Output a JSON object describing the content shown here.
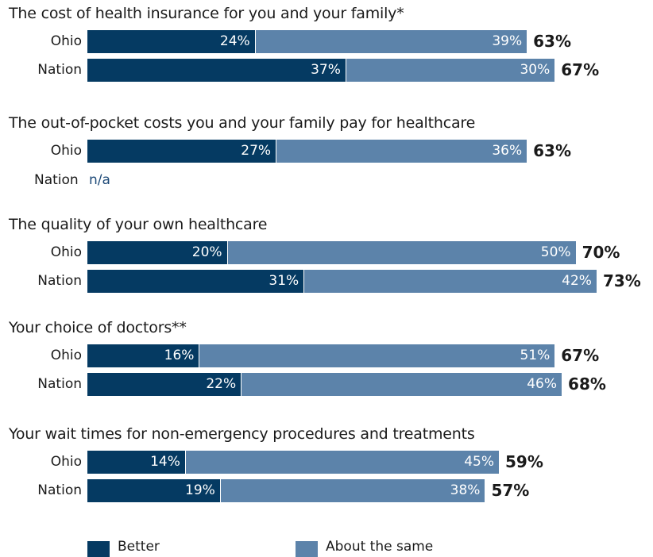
{
  "chart_data": {
    "type": "bar",
    "orientation": "horizontal",
    "stacked": true,
    "xlim": [
      0,
      100
    ],
    "grid": false,
    "legend_position": "bottom",
    "legend": [
      {
        "name": "Better",
        "color": "#053a62"
      },
      {
        "name": "About the same",
        "color": "#5c83aa"
      }
    ],
    "groups": [
      {
        "title": "The cost of health insurance for you and your family*",
        "rows": [
          {
            "label": "Ohio",
            "better": 24,
            "same": 39,
            "better_label": "24%",
            "same_label": "39%",
            "total_label": "63%"
          },
          {
            "label": "Nation",
            "better": 37,
            "same": 30,
            "better_label": "37%",
            "same_label": "30%",
            "total_label": "67%"
          }
        ]
      },
      {
        "title": "The out-of-pocket costs you and your family pay for healthcare",
        "rows": [
          {
            "label": "Ohio",
            "better": 27,
            "same": 36,
            "better_label": "27%",
            "same_label": "36%",
            "total_label": "63%"
          },
          {
            "label": "Nation",
            "na_text": "n/a"
          }
        ]
      },
      {
        "title": "The quality of your own healthcare",
        "rows": [
          {
            "label": "Ohio",
            "better": 20,
            "same": 50,
            "better_label": "20%",
            "same_label": "50%",
            "total_label": "70%"
          },
          {
            "label": "Nation",
            "better": 31,
            "same": 42,
            "better_label": "31%",
            "same_label": "42%",
            "total_label": "73%"
          }
        ]
      },
      {
        "title": "Your choice of doctors**",
        "rows": [
          {
            "label": "Ohio",
            "better": 16,
            "same": 51,
            "better_label": "16%",
            "same_label": "51%",
            "total_label": "67%"
          },
          {
            "label": "Nation",
            "better": 22,
            "same": 46,
            "better_label": "22%",
            "same_label": "46%",
            "total_label": "68%"
          }
        ]
      },
      {
        "title": "Your wait times for non-emergency procedures and treatments",
        "rows": [
          {
            "label": "Ohio",
            "better": 14,
            "same": 45,
            "better_label": "14%",
            "same_label": "45%",
            "total_label": "59%"
          },
          {
            "label": "Nation",
            "better": 19,
            "same": 38,
            "better_label": "19%",
            "same_label": "38%",
            "total_label": "57%"
          }
        ]
      }
    ]
  }
}
